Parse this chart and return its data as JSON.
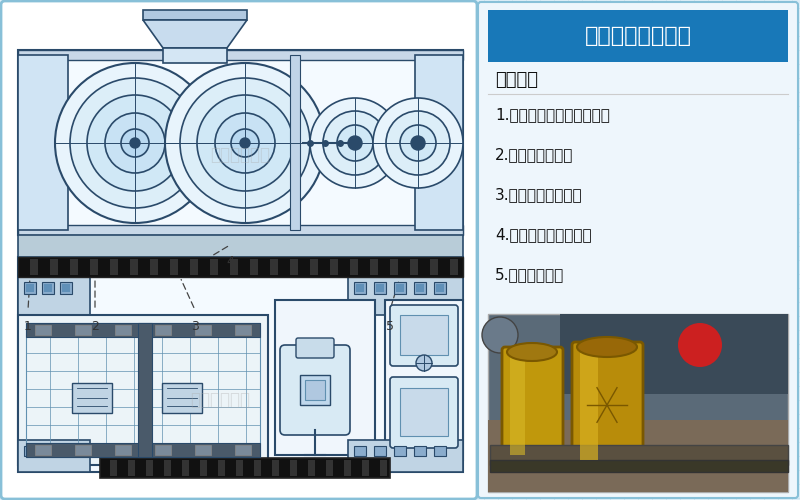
{
  "bg_color": "#ddeef8",
  "left_panel_bg": "#ffffff",
  "left_panel_border": "#88c0d8",
  "right_panel_bg": "#eef6fc",
  "title_bg": "#1878b8",
  "title_text": "皮带对辊机结构图",
  "title_text_color": "#ffffff",
  "subtitle": "主要部件",
  "items": [
    "1.　调节螺栋（调节弹簧）",
    "2.　弹簧（压力）",
    "3.　辊皮（易损件）",
    "4.　刃板（处理湿料）",
    "5.　电机减速机"
  ],
  "items_color": "#111111",
  "grid_color": "#b8d8e8",
  "watermark": "河南金联机械",
  "dc": "#2a4a6a",
  "lc": "#6090b0",
  "fc": "#e8f2f8",
  "fc2": "#d8eaf6"
}
